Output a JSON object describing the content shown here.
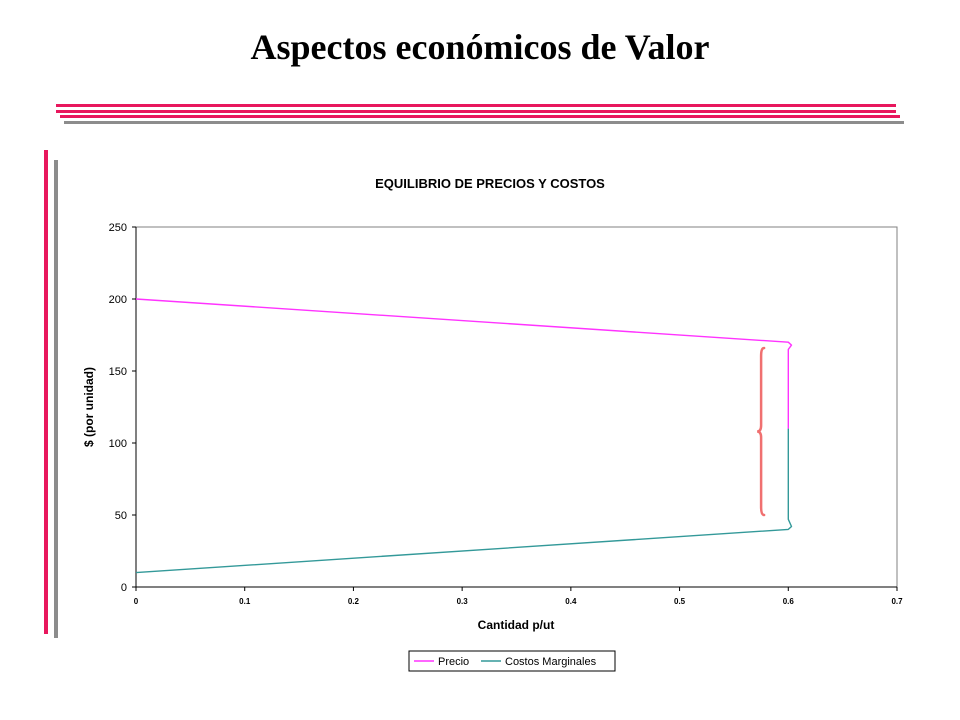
{
  "slide": {
    "title": "Aspectos económicos de Valor",
    "accent_color": "#e8175d",
    "secondary_color": "#8c8c8c"
  },
  "chart_data": {
    "type": "line",
    "title": "EQUILIBRIO DE PRECIOS Y COSTOS",
    "xlabel": "Cantidad p/ut",
    "ylabel": "$ (por unidad)",
    "xlim": [
      0,
      0.7
    ],
    "ylim": [
      0,
      250
    ],
    "x_ticks": [
      "0",
      "0.1",
      "0.2",
      "0.3",
      "0.4",
      "0.5",
      "0.6",
      "0.7"
    ],
    "y_ticks": [
      "0",
      "50",
      "100",
      "150",
      "200",
      "250"
    ],
    "grid": false,
    "legend_position": "bottom",
    "series": [
      {
        "name": "Precio",
        "color": "#ff33ff",
        "points": [
          [
            0,
            200
          ],
          [
            0.6,
            170
          ],
          [
            0.603,
            168
          ],
          [
            0.6,
            165
          ],
          [
            0.6,
            110
          ]
        ]
      },
      {
        "name": "Costos Marginales",
        "color": "#339999",
        "points": [
          [
            0,
            10
          ],
          [
            0.6,
            40
          ],
          [
            0.603,
            42
          ],
          [
            0.6,
            47
          ],
          [
            0.6,
            110
          ]
        ]
      }
    ],
    "annotations": [
      {
        "type": "brace",
        "color": "#f07070",
        "x": 0.575,
        "y_range": [
          50,
          166
        ]
      }
    ]
  }
}
